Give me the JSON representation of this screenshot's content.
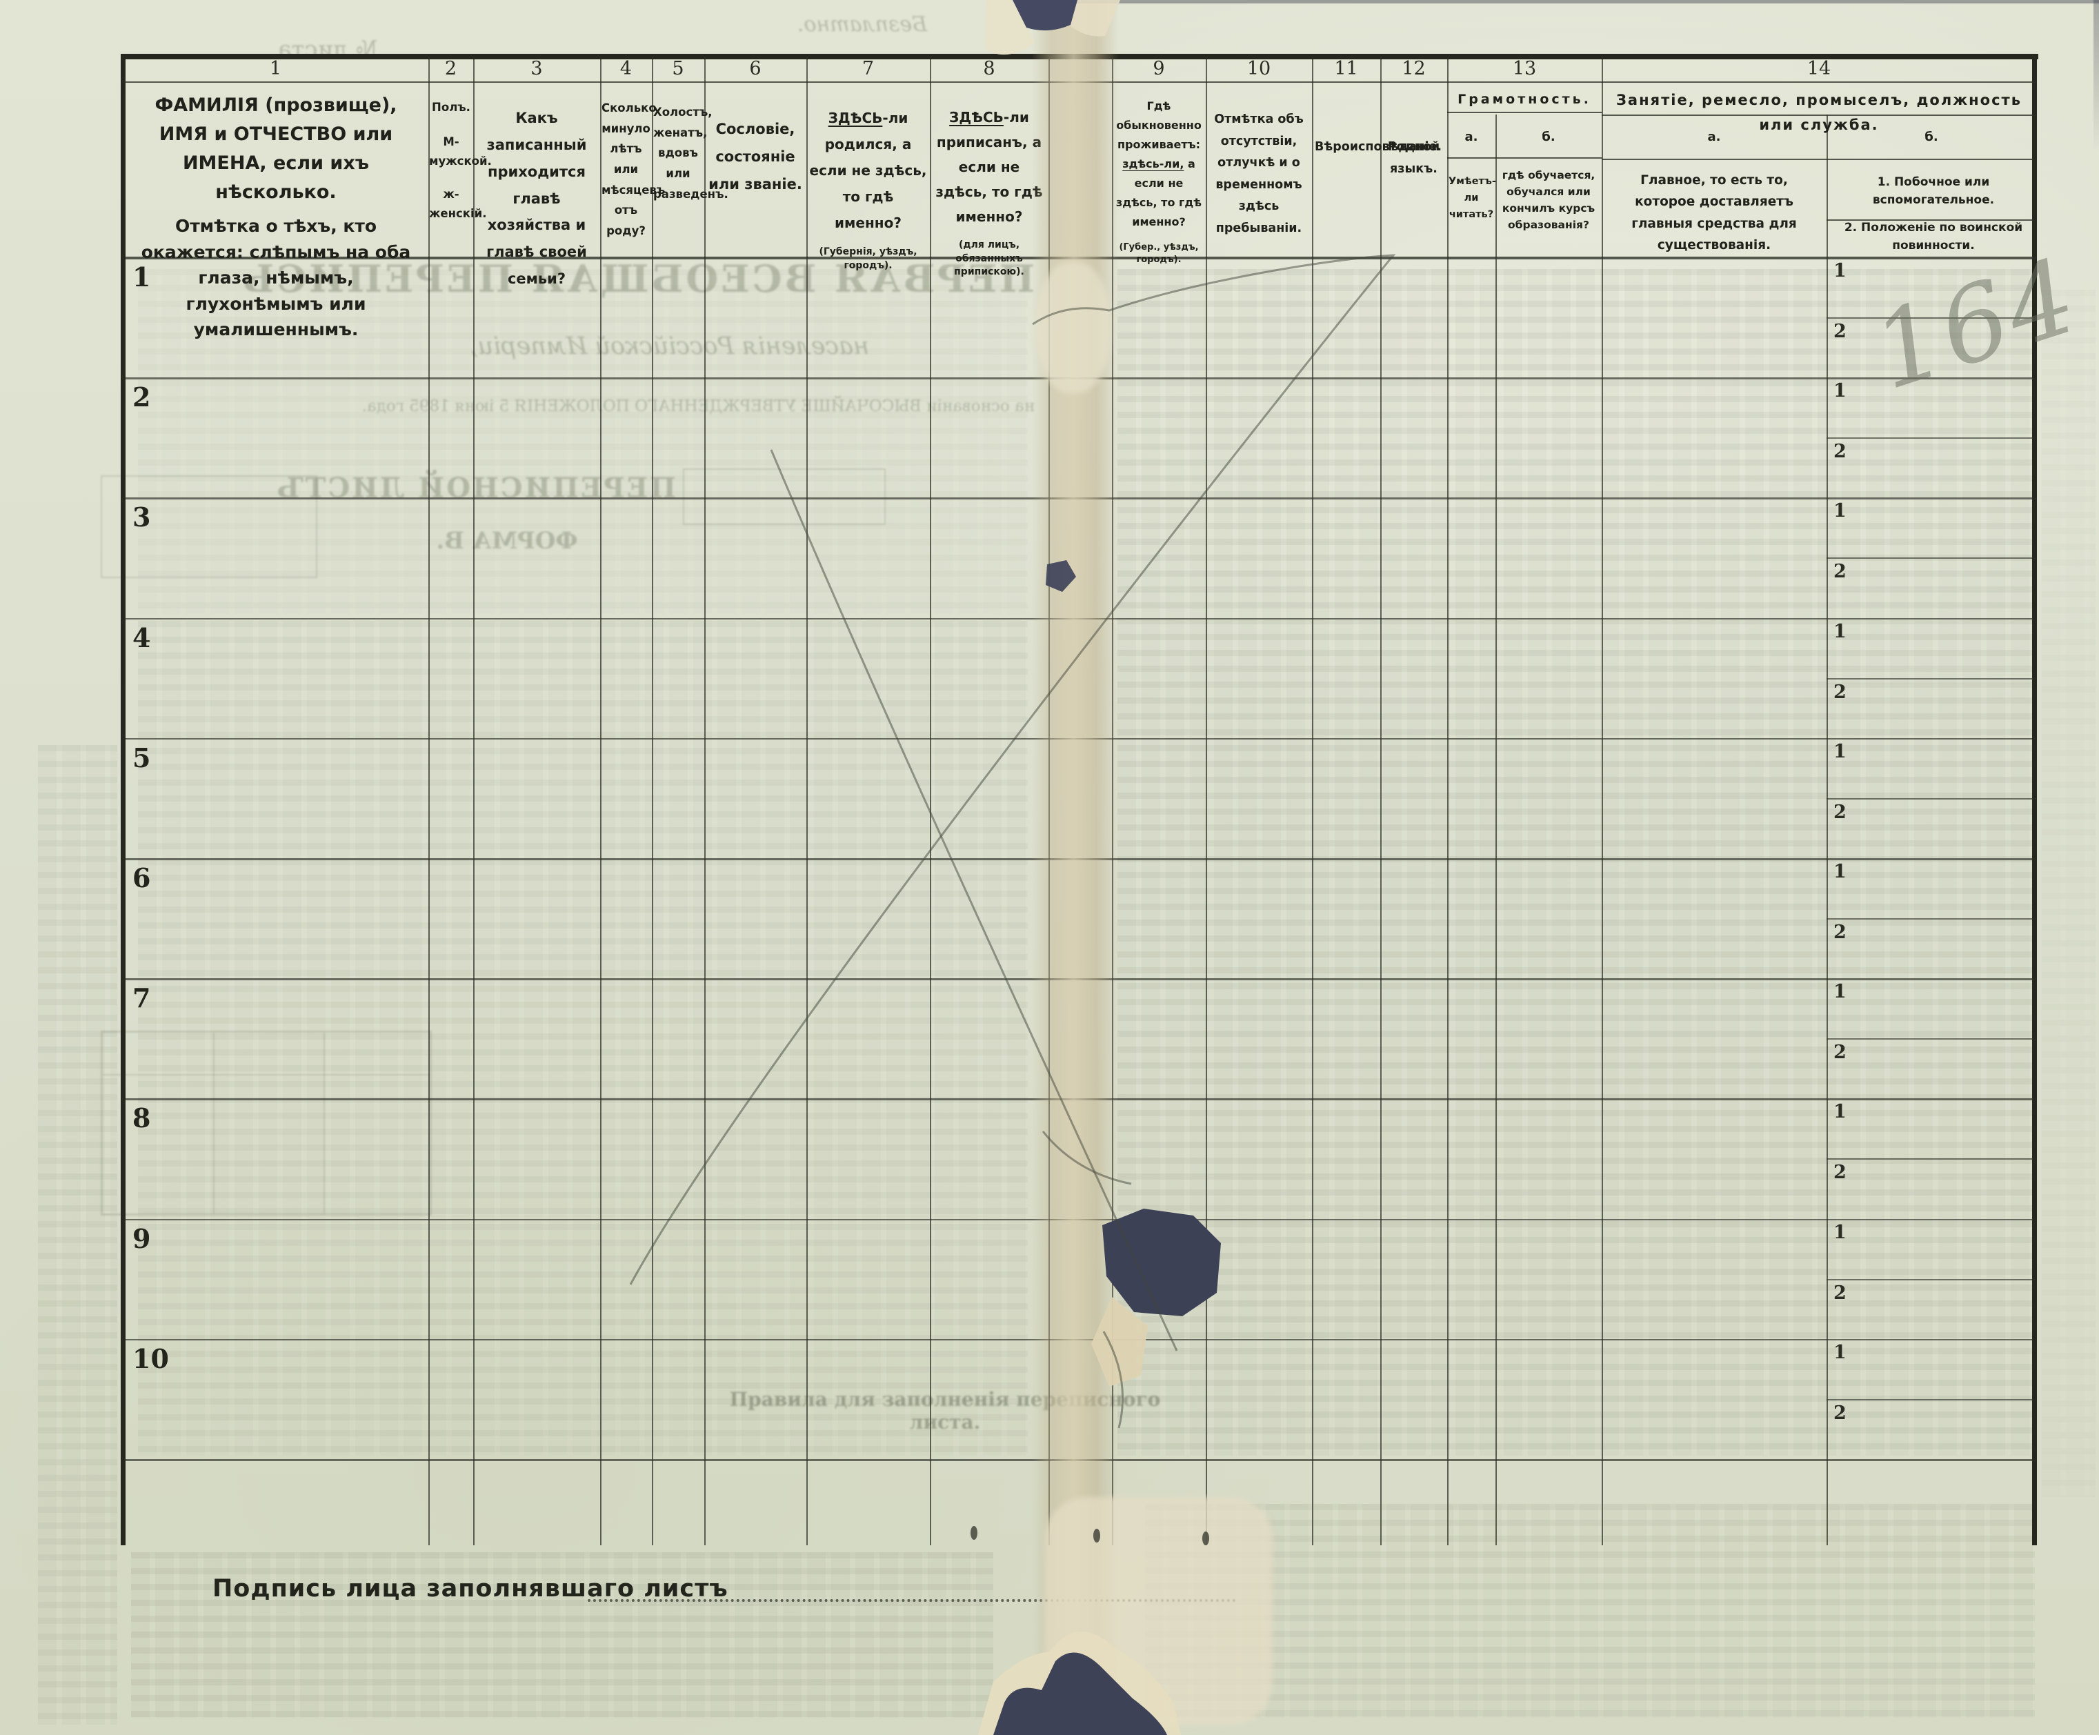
{
  "document": {
    "signature_label": "Подпись лица заполнявшаго листъ",
    "handwritten_number": "164"
  },
  "table": {
    "cols": {
      "c1": {
        "num": "1",
        "title": "ФАМИЛІЯ (прозвище), ИМЯ и ОТЧЕСТВО или ИМЕНА, если ихъ нѣсколько.",
        "note": "Отмѣтка о тѣхъ, кто окажется: слѣпымъ на оба глаза, нѣмымъ, глухонѣмымъ или умалишеннымъ."
      },
      "c2": {
        "num": "2",
        "title": "Полъ.",
        "line2": "М-мужской.",
        "line3": "ж-женскій."
      },
      "c3": {
        "num": "3",
        "title": "Какъ записанный приходится главѣ хозяйства и главѣ своей семьи?"
      },
      "c4": {
        "num": "4",
        "title": "Сколько минуло лѣтъ или мѣсяцевъ отъ роду?"
      },
      "c5": {
        "num": "5",
        "title": "Холостъ, женатъ, вдовъ или разведенъ."
      },
      "c6": {
        "num": "6",
        "title": "Сословіе, состояніе или званіе."
      },
      "c7": {
        "num": "7",
        "lead": "ЗДѢСЬ",
        "title": "-ли родился, а если не здѣсь, то гдѣ именно?",
        "note": "(Губернія, уѣздъ, городъ)."
      },
      "c8": {
        "num": "8",
        "lead": "ЗДѢСЬ",
        "title": "-ли приписанъ, а если не здѣсь, то гдѣ именно?",
        "note": "(для лицъ, обязанныхъ припискою)."
      },
      "c9": {
        "num": "9",
        "pre": "Гдѣ обыкновенно проживаетъ:",
        "lead": "здѣсь-ли,",
        "title": "а если не здѣсь, то гдѣ именно?",
        "note": "(Губер., уѣздъ, городъ)."
      },
      "c10": {
        "num": "10",
        "title": "Отмѣтка объ отсутствіи, отлучкѣ и о временномъ здѣсь пребываніи."
      },
      "c11": {
        "num": "11",
        "title": "Вѣроисповѣданіе."
      },
      "c12": {
        "num": "12",
        "title": "Родной языкъ."
      },
      "c13": {
        "num": "13",
        "group": "Грамотность.",
        "a_label": "а.",
        "a_text": "Умѣетъ-ли читать?",
        "b_label": "б.",
        "b_text": "гдѣ обучается, обучался или кончилъ курсъ образованія?"
      },
      "c14": {
        "num": "14",
        "group": "Занятіе, ремесло, промыселъ, должность или служба.",
        "a_label": "а.",
        "a_text": "Главное, то есть то, которое доставляетъ главныя средства для существованія.",
        "b_label": "б.",
        "b1": "1. Побочное или вспомогательное.",
        "b2": "2. Положеніе по воинской повинности."
      }
    },
    "row_numbers": [
      "1",
      "2",
      "3",
      "4",
      "5",
      "6",
      "7",
      "8",
      "9",
      "10"
    ],
    "sub_row_labels": [
      "1",
      "2"
    ]
  },
  "bleed_through": {
    "headline": "ПЕРВАЯ ВСЕОБЩАЯ ПЕРЕПИСЬ",
    "subtitle": "населенія Россійской Имперіи,",
    "law_line": "на основаніи ВЫСОЧАЙШЕ УТВЕРЖДЕННАГО ПОЛОЖЕНІЯ 5 іюня 1895 года.",
    "sheet_title": "ПЕРЕПИСНОЙ ЛИСТЪ",
    "form_label": "ФОРМА В.",
    "free_label": "Безплатно.",
    "sheet_no_label": "№ листа",
    "rules_heading": "Правила для заполненія переписного листа."
  },
  "colors": {
    "paper": "#dde0cf",
    "ink": "#26281f",
    "fold_tan": "#c7ba98",
    "backing_dark": "#3e4257",
    "pencil": "#6e7263"
  }
}
